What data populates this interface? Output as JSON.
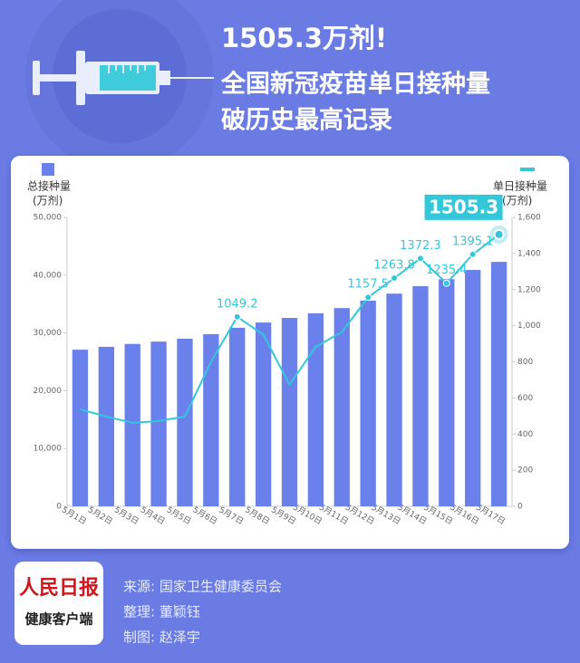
{
  "header": {
    "title": "1505.3万剂!",
    "lines": [
      "全国新冠疫苗单日接种量",
      "破历史最高记录"
    ]
  },
  "chart_data": {
    "type": "bar-line",
    "categories": [
      "5月1日",
      "5月2日",
      "5月3日",
      "5月4日",
      "5月5日",
      "5月6日",
      "5月7日",
      "5月8日",
      "5月9日",
      "5月10日",
      "5月11日",
      "5月12日",
      "5月13日",
      "5月14日",
      "5月15日",
      "5月16日",
      "5月17日"
    ],
    "series": [
      {
        "name": "总接种量",
        "unit": "(万剂)",
        "color": "#6a80ea",
        "type": "bar",
        "values": [
          27100,
          27600,
          28100,
          28500,
          29000,
          29800,
          30900,
          31800,
          32600,
          33400,
          34300,
          35600,
          36800,
          38100,
          39300,
          40900,
          42300
        ]
      },
      {
        "name": "单日接种量",
        "unit": "(万剂)",
        "color": "#33c8d9",
        "type": "line",
        "axis": "y2",
        "values": [
          537,
          497,
          462,
          472,
          497,
          800,
          1049.2,
          950,
          673,
          884,
          965,
          1157.5,
          1263.8,
          1372.3,
          1235.4,
          1395.1,
          1505.3
        ],
        "value_labels": [
          null,
          null,
          null,
          null,
          null,
          null,
          "1049.2",
          null,
          null,
          null,
          null,
          "1157.5",
          "1263.8",
          "1372.3",
          "1235.4",
          "1395.1",
          "1505.3"
        ]
      }
    ],
    "ylim": [
      0,
      50000
    ],
    "yticks": [
      0,
      {
        "value": 10000,
        "label": "10,000"
      },
      {
        "value": 20000,
        "label": "20,000"
      },
      {
        "value": 30000,
        "label": "30,000"
      },
      {
        "value": 40000,
        "label": "40,000"
      },
      {
        "value": 50000,
        "label": "50,000"
      }
    ],
    "y2lim": [
      0,
      1600
    ],
    "y2ticks": [
      0,
      200,
      400,
      600,
      800,
      {
        "value": 1000,
        "label": "1,000"
      },
      {
        "value": 1200,
        "label": "1,200"
      },
      {
        "value": 1400,
        "label": "1,400"
      },
      {
        "value": 1600,
        "label": "1,600"
      }
    ]
  },
  "footer": {
    "logo": [
      "人民日报",
      "健康客户端"
    ],
    "credits": [
      "来源: 国家卫生健康委员会",
      "整理: 董颖钰",
      "制图: 赵泽宇"
    ]
  }
}
